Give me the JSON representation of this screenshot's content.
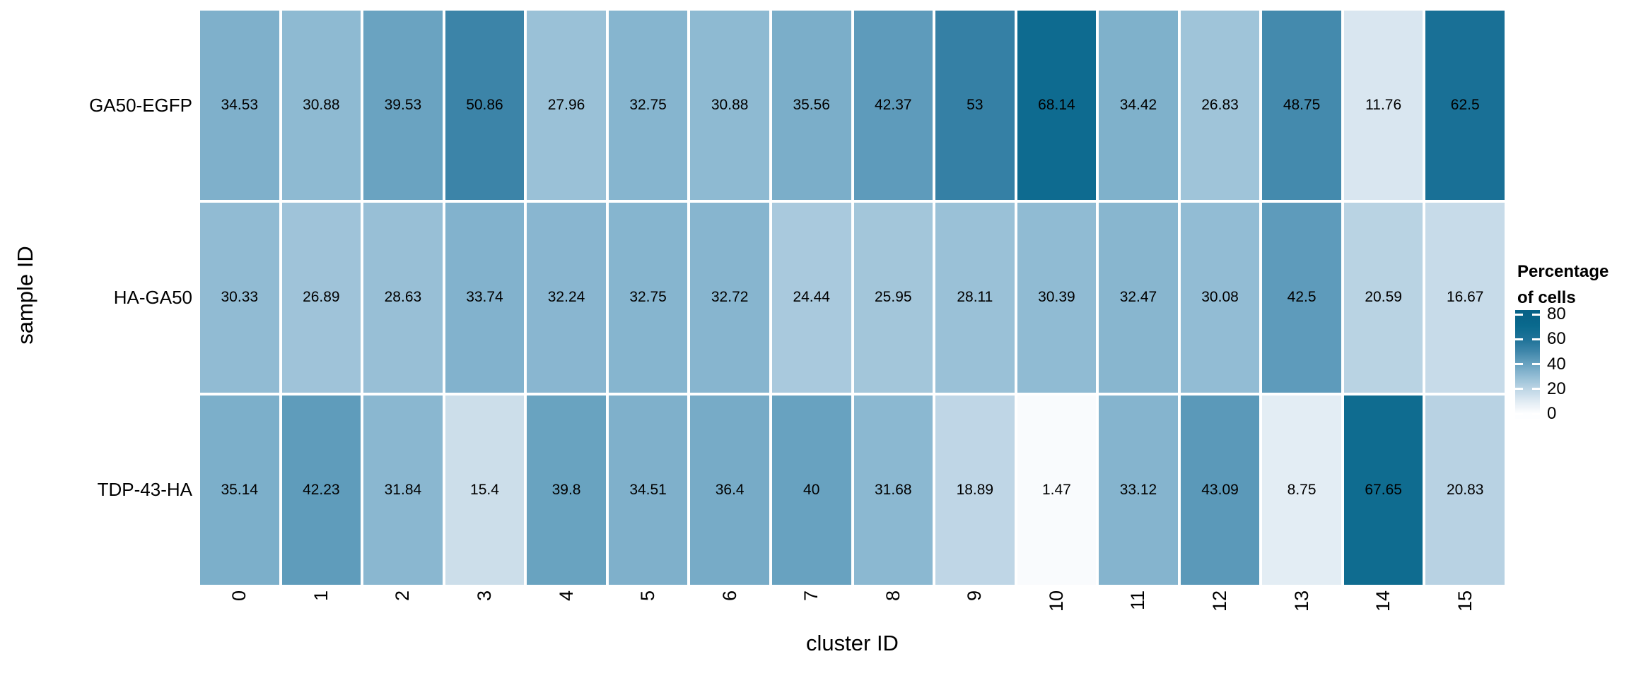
{
  "chart_data": {
    "type": "heatmap",
    "xlabel": "cluster ID",
    "ylabel": "sample ID",
    "x_categories": [
      "0",
      "1",
      "2",
      "3",
      "4",
      "5",
      "6",
      "7",
      "8",
      "9",
      "10",
      "11",
      "12",
      "13",
      "14",
      "15"
    ],
    "y_categories": [
      "GA50-EGFP",
      "HA-GA50",
      "TDP-43-HA"
    ],
    "series": [
      {
        "name": "GA50-EGFP",
        "values": [
          34.53,
          30.88,
          39.53,
          50.86,
          27.96,
          32.75,
          30.88,
          35.56,
          42.37,
          53,
          68.14,
          34.42,
          26.83,
          48.75,
          11.76,
          62.5
        ]
      },
      {
        "name": "HA-GA50",
        "values": [
          30.33,
          26.89,
          28.63,
          33.74,
          32.24,
          32.75,
          32.72,
          24.44,
          25.95,
          28.11,
          30.39,
          32.47,
          30.08,
          42.5,
          20.59,
          16.67
        ]
      },
      {
        "name": "TDP-43-HA",
        "values": [
          35.14,
          42.23,
          31.84,
          15.4,
          39.8,
          34.51,
          36.4,
          40,
          31.68,
          18.89,
          1.47,
          33.12,
          43.09,
          8.75,
          67.65,
          20.83
        ]
      }
    ],
    "legend": {
      "title_line1": "Percentage",
      "title_line2": "of cells",
      "ticks": [
        80,
        60,
        40,
        20,
        0
      ],
      "position": "right"
    },
    "color_scale": {
      "domain": [
        0,
        80
      ],
      "bar_range": [
        -4.5,
        83.5
      ],
      "stops": [
        {
          "value": 0,
          "color": "#fdfeff"
        },
        {
          "value": 10,
          "color": "#dfeaf2"
        },
        {
          "value": 20,
          "color": "#bbd4e4"
        },
        {
          "value": 30,
          "color": "#92bcd4"
        },
        {
          "value": 40,
          "color": "#68a2c0"
        },
        {
          "value": 50,
          "color": "#3f86aa"
        },
        {
          "value": 60,
          "color": "#1e7298"
        },
        {
          "value": 70,
          "color": "#0a6a8e"
        },
        {
          "value": 80,
          "color": "#076287"
        }
      ]
    },
    "grid": false,
    "background": "#ffffff",
    "text_color": "#000000"
  }
}
